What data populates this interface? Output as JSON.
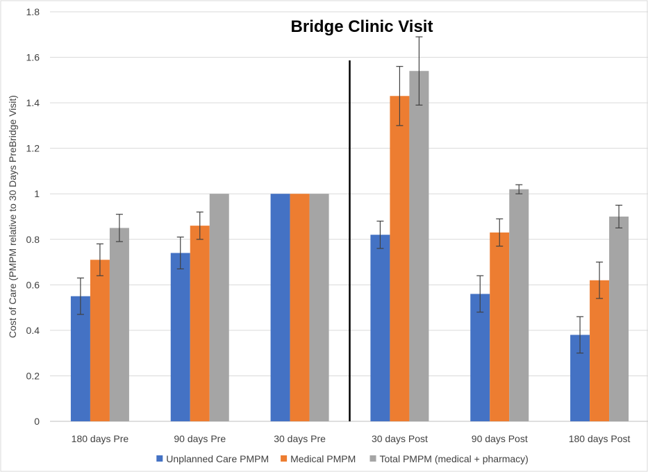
{
  "chart_data": {
    "type": "bar",
    "title": "Bridge Clinic Visit",
    "xlabel": "",
    "ylabel": "Cost of Care (PMPM relative to 30 Days PreBridge Visit)",
    "ylim": [
      0,
      1.8
    ],
    "yticks": [
      "0",
      "0.2",
      "0.4",
      "0.6",
      "0.8",
      "1",
      "1.2",
      "1.4",
      "1.6",
      "1.8"
    ],
    "categories": [
      "180 days Pre",
      "90 days Pre",
      "30 days Pre",
      "30 days Post",
      "90 days Post",
      "180 days Post"
    ],
    "series": [
      {
        "name": "Unplanned Care PMPM",
        "color": "#4472c4",
        "values": [
          0.55,
          0.74,
          1.0,
          0.82,
          0.56,
          0.38
        ],
        "error": [
          0.08,
          0.07,
          0.0,
          0.06,
          0.08,
          0.08
        ]
      },
      {
        "name": "Medical PMPM",
        "color": "#ed7d31",
        "values": [
          0.71,
          0.86,
          1.0,
          1.43,
          0.83,
          0.62
        ],
        "error": [
          0.07,
          0.06,
          0.0,
          0.13,
          0.06,
          0.08
        ]
      },
      {
        "name": "Total PMPM (medical + pharmacy)",
        "color": "#a5a5a5",
        "values": [
          0.85,
          1.0,
          1.0,
          1.54,
          1.02,
          0.9
        ],
        "error": [
          0.06,
          0.0,
          0.0,
          0.15,
          0.02,
          0.05
        ]
      }
    ],
    "divider_after_category": 2,
    "grid": true,
    "legend_position": "bottom"
  }
}
